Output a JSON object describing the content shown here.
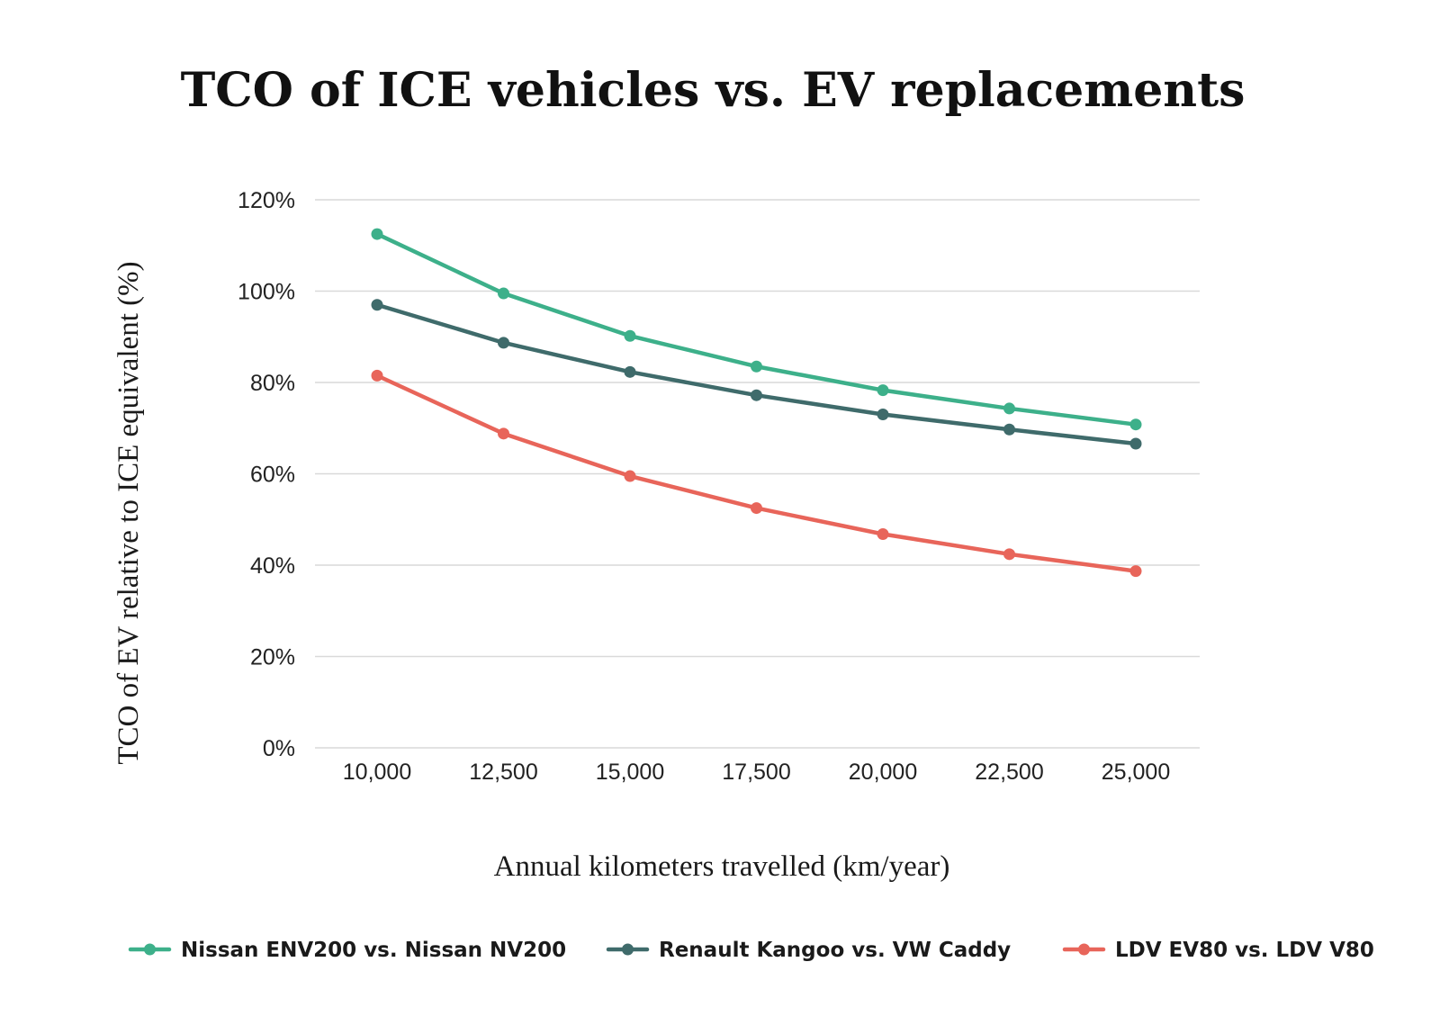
{
  "chart_data": {
    "type": "line",
    "title": "TCO of ICE vehicles vs. EV replacements",
    "xlabel": "Annual kilometers travelled (km/year)",
    "ylabel": "TCO of EV relative to ICE equivalent (%)",
    "categories": [
      "10,000",
      "12,500",
      "15,000",
      "17,500",
      "20,000",
      "22,500",
      "25,000"
    ],
    "ylim": [
      0,
      120
    ],
    "yticks": [
      "0%",
      "20%",
      "40%",
      "60%",
      "80%",
      "100%",
      "120%"
    ],
    "ytick_values": [
      0,
      20,
      40,
      60,
      80,
      100,
      120
    ],
    "grid": true,
    "legend_position": "bottom",
    "series": [
      {
        "name": "Nissan ENV200 vs. Nissan NV200",
        "color": "#3db08a",
        "values": [
          112.5,
          99.5,
          90.2,
          83.5,
          78.3,
          74.3,
          70.8
        ]
      },
      {
        "name": "Renault Kangoo vs. VW Caddy",
        "color": "#3f6b6b",
        "values": [
          97.0,
          88.7,
          82.3,
          77.2,
          73.0,
          69.7,
          66.6
        ]
      },
      {
        "name": "LDV EV80 vs. LDV V80",
        "color": "#e8655a",
        "values": [
          81.5,
          68.8,
          59.5,
          52.5,
          46.8,
          42.4,
          38.7
        ]
      }
    ]
  }
}
